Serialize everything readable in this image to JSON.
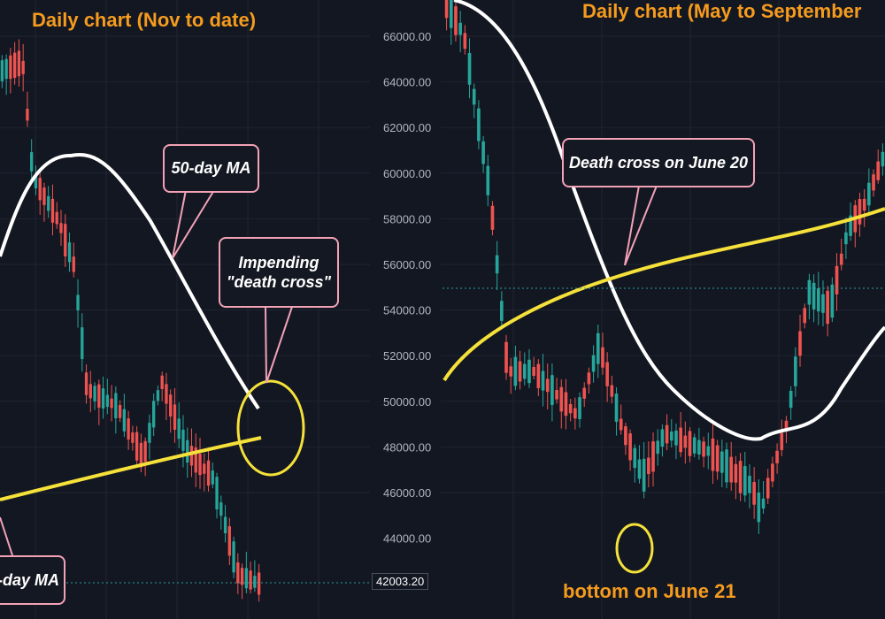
{
  "colors": {
    "bg": "#131722",
    "up": "#26a69a",
    "down": "#ef5350",
    "ma50": "#ffffff",
    "ma200": "#f5e13a",
    "title": "#f59b1e",
    "callout_border": "#f3a2b6",
    "grid": "#1f2430",
    "price_line": "#2aa1a1"
  },
  "chart_data": [
    {
      "type": "candlestick",
      "title": "Daily chart (Nov to date)",
      "series": [
        {
          "name": "50-day MA"
        },
        {
          "name": "-day MA"
        }
      ],
      "annotations": [
        "50-day MA",
        "Impending",
        "\"death cross\"",
        "-day MA"
      ],
      "last_price": "42003.20",
      "ylim": [
        42000,
        67000
      ]
    },
    {
      "type": "candlestick",
      "title": "Daily chart (May to September",
      "yticks": [
        "66000.00",
        "64000.00",
        "62000.00",
        "60000.00",
        "58000.00",
        "56000.00",
        "54000.00",
        "52000.00",
        "50000.00",
        "48000.00",
        "46000.00",
        "44000.00"
      ],
      "annotations": [
        "Death cross on June 20",
        "bottom on June 21"
      ],
      "ylim": [
        42500,
        67000
      ]
    }
  ],
  "left": {
    "title": "Daily chart (Nov to date)",
    "ma50_label": "50-day MA",
    "cross_line1": "Impending",
    "cross_line2": "\"death cross\"",
    "ma200_label": "-day MA",
    "price": "42003.20"
  },
  "right": {
    "title": "Daily chart (May to September",
    "cross_label": "Death cross on June 20",
    "bottom_label": "bottom on June 21"
  }
}
